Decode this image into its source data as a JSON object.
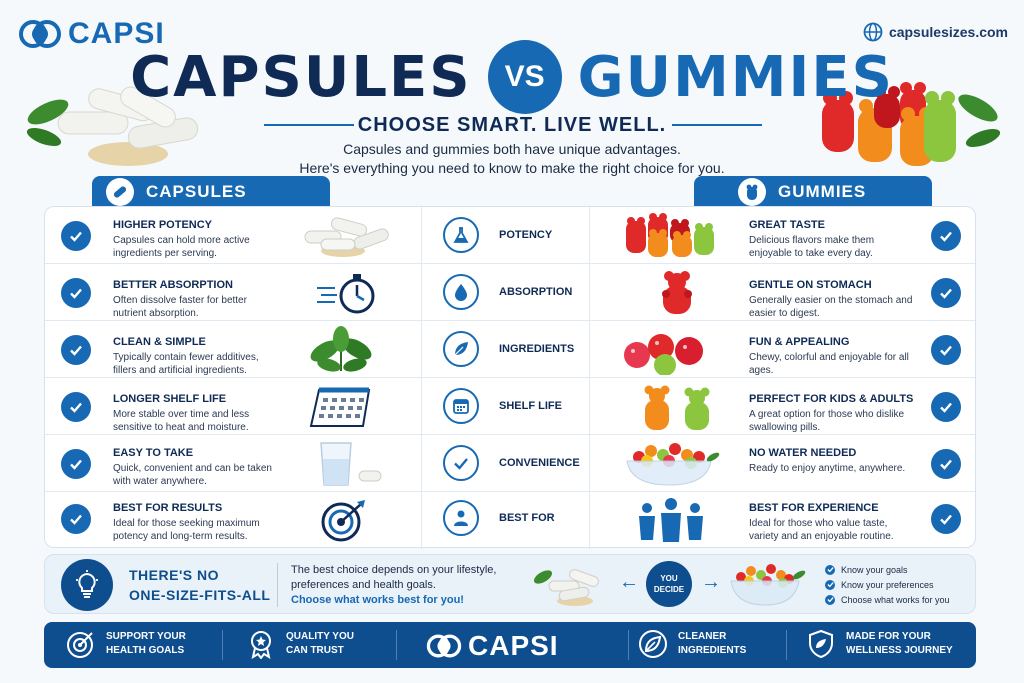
{
  "brand": {
    "name": "CAPSI",
    "site": "capsulesizes.com"
  },
  "header": {
    "title_left": "CAPSULES",
    "vs": "VS",
    "title_right": "GUMMIES",
    "tagline": "CHOOSE SMART. LIVE WELL.",
    "intro_line1": "Capsules and gummies both have unique advantages.",
    "intro_line2": "Here's everything you need to know to make the right choice for you."
  },
  "tabs": {
    "capsules": "CAPSULES",
    "gummies": "GUMMIES"
  },
  "rows": [
    {
      "category": "POTENCY",
      "category_icon": "flask-icon",
      "capsule_title": "HIGHER POTENCY",
      "capsule_desc": "Capsules can hold more active ingredients per serving.",
      "capsule_illus": "capsules-pile-icon",
      "gummy_title": "GREAT TASTE",
      "gummy_desc": "Delicious flavors make them enjoyable to take every day.",
      "gummy_illus": "gummy-bears-icon"
    },
    {
      "category": "ABSORPTION",
      "category_icon": "droplet-icon",
      "capsule_title": "BETTER ABSORPTION",
      "capsule_desc": "Often dissolve faster for better nutrient absorption.",
      "capsule_illus": "stopwatch-icon",
      "gummy_title": "GENTLE ON STOMACH",
      "gummy_desc": "Generally easier on the stomach and easier to digest.",
      "gummy_illus": "red-gummy-bear-icon"
    },
    {
      "category": "INGREDIENTS",
      "category_icon": "leaf-icon",
      "capsule_title": "CLEAN & SIMPLE",
      "capsule_desc": "Typically contain fewer additives, fillers and artificial ingredients.",
      "capsule_illus": "leaves-icon",
      "gummy_title": "FUN & APPEALING",
      "gummy_desc": "Chewy, colorful and enjoyable for all ages.",
      "gummy_illus": "gummy-balls-icon"
    },
    {
      "category": "SHELF LIFE",
      "category_icon": "calendar-icon",
      "capsule_title": "LONGER SHELF LIFE",
      "capsule_desc": "More stable over time and less sensitive to heat and moisture.",
      "capsule_illus": "desk-calendar-icon",
      "gummy_title": "PERFECT FOR KIDS & ADULTS",
      "gummy_desc": "A great option for those who dislike swallowing pills.",
      "gummy_illus": "two-gummy-bears-icon"
    },
    {
      "category": "CONVENIENCE",
      "category_icon": "checkmark-icon",
      "capsule_title": "EASY TO TAKE",
      "capsule_desc": "Quick, convenient and can be taken with water anywhere.",
      "capsule_illus": "water-glass-icon",
      "gummy_title": "NO WATER NEEDED",
      "gummy_desc": "Ready to enjoy anytime, anywhere.",
      "gummy_illus": "gummy-bowl-icon"
    },
    {
      "category": "BEST FOR",
      "category_icon": "person-icon",
      "capsule_title": "BEST FOR RESULTS",
      "capsule_desc": "Ideal for those seeking maximum potency and long-term results.",
      "capsule_illus": "target-icon",
      "gummy_title": "BEST FOR EXPERIENCE",
      "gummy_desc": "Ideal for those who value taste, variety and an enjoyable routine.",
      "gummy_illus": "family-icon"
    }
  ],
  "info": {
    "headline_line1": "THERE'S NO",
    "headline_line2": "ONE-SIZE-FITS-ALL",
    "text_line1": "The best choice depends on your lifestyle,",
    "text_line2": "preferences and health goals.",
    "cta": "Choose what works best for you!",
    "decide_line1": "YOU",
    "decide_line2": "DECIDE",
    "goals": [
      "Know your goals",
      "Know your preferences",
      "Choose what works for you"
    ]
  },
  "footer": {
    "items": [
      {
        "line1": "SUPPORT YOUR",
        "line2": "HEALTH GOALS",
        "icon": "target-icon"
      },
      {
        "line1": "QUALITY YOU",
        "line2": "CAN TRUST",
        "icon": "award-badge-icon"
      },
      {
        "line1": "CLEANER",
        "line2": "INGREDIENTS",
        "icon": "leaf-icon"
      },
      {
        "line1": "MADE FOR YOUR",
        "line2": "WELLNESS JOURNEY",
        "icon": "shield-icon"
      }
    ]
  },
  "colors": {
    "primary": "#1769b3",
    "navy": "#0f2b55",
    "footer": "#0f4e8e",
    "gummy_red": "#e02a2a",
    "gummy_orange": "#f28c1c",
    "gummy_green": "#8cc63f"
  }
}
